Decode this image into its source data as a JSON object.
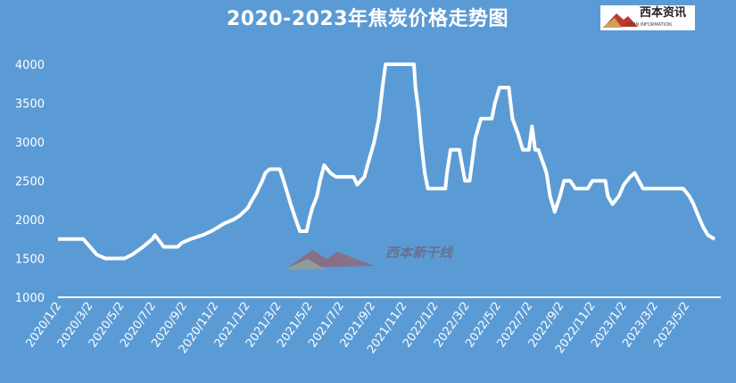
{
  "chart_data": {
    "type": "area",
    "title": "2020-2023年焦炭价格走势图",
    "xlabel": "",
    "ylabel": "",
    "ylim": [
      1000,
      4000
    ],
    "yticks": [
      "1000",
      "1500",
      "2000",
      "2500",
      "3000",
      "3500",
      "4000"
    ],
    "xticks": [
      "2020/1/2",
      "2020/3/2",
      "2020/5/2",
      "2020/7/2",
      "2020/9/2",
      "2020/11/2",
      "2021/1/2",
      "2021/3/2",
      "2021/5/2",
      "2021/7/2",
      "2021/9/2",
      "2021/11/2",
      "2022/1/2",
      "2022/3/2",
      "2022/5/2",
      "2022/7/2",
      "2022/9/2",
      "2022/11/2",
      "2023/1/2",
      "2023/3/2",
      "2023/5/2"
    ],
    "grid": false,
    "legend": "none",
    "colors": {
      "background": "#5b9bd5",
      "line": "#ffffff",
      "fill": "#ffffff"
    },
    "series": [
      {
        "points": [
          [
            "2020/1/2",
            1750
          ],
          [
            "2020/2/20",
            1750
          ],
          [
            "2020/3/17",
            1550
          ],
          [
            "2020/4/3",
            1500
          ],
          [
            "2020/5/10",
            1500
          ],
          [
            "2020/5/25",
            1550
          ],
          [
            "2020/6/15",
            1650
          ],
          [
            "2020/7/3",
            1750
          ],
          [
            "2020/7/8",
            1800
          ],
          [
            "2020/7/25",
            1650
          ],
          [
            "2020/8/21",
            1650
          ],
          [
            "2020/8/29",
            1700
          ],
          [
            "2020/9/15",
            1750
          ],
          [
            "2020/10/8",
            1800
          ],
          [
            "2020/10/25",
            1850
          ],
          [
            "2020/11/7",
            1900
          ],
          [
            "2020/11/19",
            1950
          ],
          [
            "2020/12/7",
            2000
          ],
          [
            "2020/12/19",
            2050
          ],
          [
            "2021/1/4",
            2150
          ],
          [
            "2021/1/12",
            2250
          ],
          [
            "2021/1/21",
            2350
          ],
          [
            "2021/2/1",
            2500
          ],
          [
            "2021/2/7",
            2600
          ],
          [
            "2021/2/15",
            2650
          ],
          [
            "2021/3/7",
            2650
          ],
          [
            "2021/3/12",
            2550
          ],
          [
            "2021/3/19",
            2400
          ],
          [
            "2021/3/28",
            2200
          ],
          [
            "2021/4/7",
            2000
          ],
          [
            "2021/4/15",
            1850
          ],
          [
            "2021/4/28",
            1850
          ],
          [
            "2021/5/3",
            2000
          ],
          [
            "2021/5/9",
            2150
          ],
          [
            "2021/5/18",
            2300
          ],
          [
            "2021/5/24",
            2500
          ],
          [
            "2021/6/1",
            2700
          ],
          [
            "2021/6/13",
            2600
          ],
          [
            "2021/6/24",
            2550
          ],
          [
            "2021/7/28",
            2550
          ],
          [
            "2021/8/4",
            2450
          ],
          [
            "2021/8/18",
            2550
          ],
          [
            "2021/8/24",
            2700
          ],
          [
            "2021/9/6",
            3000
          ],
          [
            "2021/9/15",
            3300
          ],
          [
            "2021/9/22",
            3700
          ],
          [
            "2021/9/28",
            4000
          ],
          [
            "2021/11/22",
            4000
          ],
          [
            "2021/11/25",
            3700
          ],
          [
            "2021/12/1",
            3400
          ],
          [
            "2021/12/6",
            3000
          ],
          [
            "2021/12/13",
            2600
          ],
          [
            "2021/12/19",
            2400
          ],
          [
            "2022/1/22",
            2400
          ],
          [
            "2022/1/25",
            2600
          ],
          [
            "2022/2/1",
            2900
          ],
          [
            "2022/2/18",
            2900
          ],
          [
            "2022/2/22",
            2750
          ],
          [
            "2022/3/1",
            2500
          ],
          [
            "2022/3/10",
            2500
          ],
          [
            "2022/3/15",
            2750
          ],
          [
            "2022/3/21",
            3050
          ],
          [
            "2022/4/1",
            3300
          ],
          [
            "2022/4/22",
            3300
          ],
          [
            "2022/4/28",
            3500
          ],
          [
            "2022/5/7",
            3700
          ],
          [
            "2022/5/25",
            3700
          ],
          [
            "2022/6/1",
            3300
          ],
          [
            "2022/6/12",
            3100
          ],
          [
            "2022/6/21",
            2900
          ],
          [
            "2022/7/3",
            2900
          ],
          [
            "2022/7/9",
            3200
          ],
          [
            "2022/7/15",
            2900
          ],
          [
            "2022/7/21",
            2900
          ],
          [
            "2022/8/1",
            2700
          ],
          [
            "2022/8/6",
            2600
          ],
          [
            "2022/8/13",
            2300
          ],
          [
            "2022/8/22",
            2100
          ],
          [
            "2022/9/1",
            2300
          ],
          [
            "2022/9/9",
            2500
          ],
          [
            "2022/9/21",
            2500
          ],
          [
            "2022/10/1",
            2400
          ],
          [
            "2022/10/25",
            2400
          ],
          [
            "2022/11/3",
            2500
          ],
          [
            "2022/11/28",
            2500
          ],
          [
            "2022/12/3",
            2300
          ],
          [
            "2022/12/12",
            2200
          ],
          [
            "2022/12/24",
            2300
          ],
          [
            "2023/1/3",
            2450
          ],
          [
            "2023/1/15",
            2550
          ],
          [
            "2023/1/24",
            2600
          ],
          [
            "2023/2/1",
            2500
          ],
          [
            "2023/2/9",
            2400
          ],
          [
            "2023/4/28",
            2400
          ],
          [
            "2023/5/10",
            2300
          ],
          [
            "2023/5/18",
            2200
          ],
          [
            "2023/5/27",
            2050
          ],
          [
            "2023/6/6",
            1900
          ],
          [
            "2023/6/15",
            1800
          ],
          [
            "2023/6/28",
            1750
          ]
        ]
      }
    ]
  },
  "logo": {
    "text_cn": "西本资讯",
    "text_en": "XIBEN INFORMATION"
  },
  "watermark": "西本新干线"
}
